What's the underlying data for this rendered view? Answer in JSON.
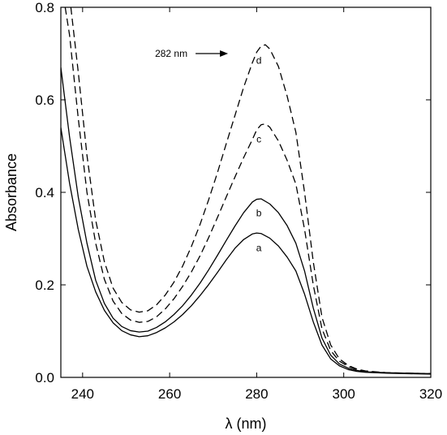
{
  "chart_data": {
    "type": "line",
    "xlabel": "λ (nm)",
    "ylabel": "Absorbance",
    "xlim": [
      235,
      320
    ],
    "ylim": [
      0.0,
      0.8
    ],
    "xticks": [
      240,
      260,
      280,
      300,
      320
    ],
    "yticks": [
      0.0,
      0.2,
      0.4,
      0.6,
      0.8
    ],
    "xtick_labels": [
      "240",
      "260",
      "280",
      "300",
      "320"
    ],
    "ytick_labels": [
      "0.0",
      "0.2",
      "0.4",
      "0.6",
      "0.8"
    ],
    "grid": false,
    "annotation": {
      "text": "282 nm",
      "arrow_to_x": 280.5,
      "arrow_y": 0.7
    },
    "series": [
      {
        "name": "a",
        "style": "solid",
        "points": [
          [
            235,
            0.54
          ],
          [
            237,
            0.42
          ],
          [
            239,
            0.32
          ],
          [
            241,
            0.24
          ],
          [
            243,
            0.185
          ],
          [
            245,
            0.145
          ],
          [
            247,
            0.118
          ],
          [
            249,
            0.101
          ],
          [
            251,
            0.092
          ],
          [
            253,
            0.088
          ],
          [
            255,
            0.09
          ],
          [
            257,
            0.097
          ],
          [
            259,
            0.107
          ],
          [
            261,
            0.12
          ],
          [
            263,
            0.136
          ],
          [
            265,
            0.155
          ],
          [
            267,
            0.177
          ],
          [
            269,
            0.201
          ],
          [
            271,
            0.227
          ],
          [
            273,
            0.254
          ],
          [
            275,
            0.279
          ],
          [
            277,
            0.298
          ],
          [
            279,
            0.31
          ],
          [
            280,
            0.312
          ],
          [
            281,
            0.311
          ],
          [
            283,
            0.301
          ],
          [
            285,
            0.284
          ],
          [
            287,
            0.26
          ],
          [
            289,
            0.23
          ],
          [
            291,
            0.18
          ],
          [
            293,
            0.12
          ],
          [
            295,
            0.07
          ],
          [
            297,
            0.04
          ],
          [
            299,
            0.025
          ],
          [
            301,
            0.017
          ],
          [
            303,
            0.013
          ],
          [
            305,
            0.011
          ],
          [
            310,
            0.009
          ],
          [
            315,
            0.008
          ],
          [
            320,
            0.007
          ]
        ]
      },
      {
        "name": "b",
        "style": "solid",
        "points": [
          [
            235,
            0.67
          ],
          [
            237,
            0.52
          ],
          [
            239,
            0.39
          ],
          [
            241,
            0.29
          ],
          [
            243,
            0.21
          ],
          [
            245,
            0.16
          ],
          [
            247,
            0.128
          ],
          [
            249,
            0.11
          ],
          [
            251,
            0.101
          ],
          [
            253,
            0.098
          ],
          [
            255,
            0.1
          ],
          [
            257,
            0.108
          ],
          [
            259,
            0.12
          ],
          [
            261,
            0.136
          ],
          [
            263,
            0.155
          ],
          [
            265,
            0.178
          ],
          [
            267,
            0.204
          ],
          [
            269,
            0.233
          ],
          [
            271,
            0.264
          ],
          [
            273,
            0.296
          ],
          [
            275,
            0.327
          ],
          [
            277,
            0.356
          ],
          [
            279,
            0.379
          ],
          [
            280,
            0.385
          ],
          [
            281,
            0.386
          ],
          [
            283,
            0.375
          ],
          [
            285,
            0.356
          ],
          [
            287,
            0.328
          ],
          [
            289,
            0.29
          ],
          [
            291,
            0.23
          ],
          [
            293,
            0.15
          ],
          [
            295,
            0.085
          ],
          [
            297,
            0.048
          ],
          [
            299,
            0.029
          ],
          [
            301,
            0.02
          ],
          [
            303,
            0.015
          ],
          [
            305,
            0.012
          ],
          [
            310,
            0.01
          ],
          [
            315,
            0.009
          ],
          [
            320,
            0.008
          ]
        ]
      },
      {
        "name": "c",
        "style": "dashed",
        "points": [
          [
            236,
            0.8
          ],
          [
            237,
            0.74
          ],
          [
            239,
            0.56
          ],
          [
            241,
            0.4
          ],
          [
            243,
            0.29
          ],
          [
            245,
            0.212
          ],
          [
            247,
            0.165
          ],
          [
            249,
            0.138
          ],
          [
            251,
            0.124
          ],
          [
            253,
            0.119
          ],
          [
            255,
            0.121
          ],
          [
            257,
            0.131
          ],
          [
            259,
            0.148
          ],
          [
            261,
            0.17
          ],
          [
            263,
            0.197
          ],
          [
            265,
            0.228
          ],
          [
            267,
            0.263
          ],
          [
            269,
            0.303
          ],
          [
            271,
            0.346
          ],
          [
            273,
            0.39
          ],
          [
            275,
            0.433
          ],
          [
            277,
            0.475
          ],
          [
            279,
            0.514
          ],
          [
            280,
            0.535
          ],
          [
            281,
            0.546
          ],
          [
            282,
            0.548
          ],
          [
            283,
            0.541
          ],
          [
            285,
            0.511
          ],
          [
            287,
            0.469
          ],
          [
            289,
            0.418
          ],
          [
            291,
            0.32
          ],
          [
            293,
            0.2
          ],
          [
            295,
            0.105
          ],
          [
            297,
            0.058
          ],
          [
            299,
            0.035
          ],
          [
            301,
            0.024
          ],
          [
            303,
            0.017
          ],
          [
            305,
            0.013
          ],
          [
            310,
            0.01
          ],
          [
            315,
            0.009
          ],
          [
            320,
            0.008
          ]
        ]
      },
      {
        "name": "d",
        "style": "dashed",
        "points": [
          [
            237.3,
            0.8
          ],
          [
            239,
            0.66
          ],
          [
            241,
            0.48
          ],
          [
            243,
            0.34
          ],
          [
            245,
            0.25
          ],
          [
            247,
            0.193
          ],
          [
            249,
            0.162
          ],
          [
            251,
            0.146
          ],
          [
            253,
            0.141
          ],
          [
            255,
            0.144
          ],
          [
            257,
            0.157
          ],
          [
            259,
            0.178
          ],
          [
            261,
            0.206
          ],
          [
            263,
            0.241
          ],
          [
            265,
            0.283
          ],
          [
            267,
            0.331
          ],
          [
            269,
            0.385
          ],
          [
            271,
            0.443
          ],
          [
            273,
            0.505
          ],
          [
            275,
            0.566
          ],
          [
            277,
            0.627
          ],
          [
            279,
            0.68
          ],
          [
            280,
            0.703
          ],
          [
            281,
            0.716
          ],
          [
            282,
            0.719
          ],
          [
            283,
            0.71
          ],
          [
            285,
            0.672
          ],
          [
            287,
            0.608
          ],
          [
            289,
            0.53
          ],
          [
            291,
            0.4
          ],
          [
            293,
            0.25
          ],
          [
            295,
            0.13
          ],
          [
            297,
            0.07
          ],
          [
            299,
            0.04
          ],
          [
            301,
            0.026
          ],
          [
            303,
            0.018
          ],
          [
            305,
            0.014
          ],
          [
            310,
            0.01
          ],
          [
            315,
            0.009
          ],
          [
            320,
            0.008
          ]
        ]
      }
    ],
    "curve_labels": [
      {
        "text": "a",
        "x": 280.5,
        "y": 0.28
      },
      {
        "text": "b",
        "x": 280.5,
        "y": 0.355
      },
      {
        "text": "c",
        "x": 280.5,
        "y": 0.515
      },
      {
        "text": "d",
        "x": 280.5,
        "y": 0.685
      }
    ]
  }
}
